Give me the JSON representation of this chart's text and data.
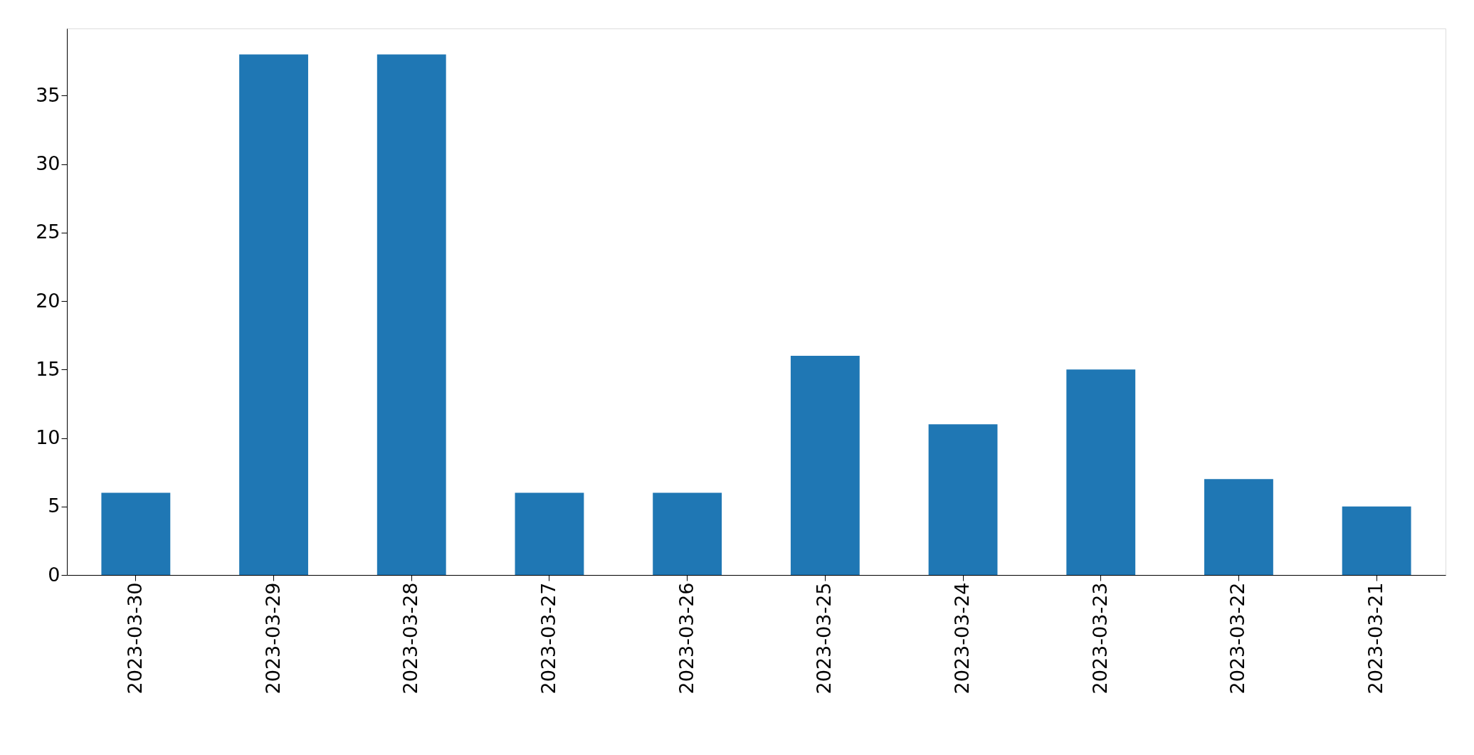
{
  "chart_data": {
    "type": "bar",
    "categories": [
      "2023-03-30",
      "2023-03-29",
      "2023-03-28",
      "2023-03-27",
      "2023-03-26",
      "2023-03-25",
      "2023-03-24",
      "2023-03-23",
      "2023-03-22",
      "2023-03-21"
    ],
    "values": [
      6,
      38,
      38,
      6,
      6,
      16,
      11,
      15,
      7,
      5
    ],
    "color": "#1f77b4",
    "ylim": [
      0,
      39.9
    ],
    "yticks": [
      0,
      5,
      10,
      15,
      20,
      25,
      30,
      35
    ],
    "grid": false
  }
}
